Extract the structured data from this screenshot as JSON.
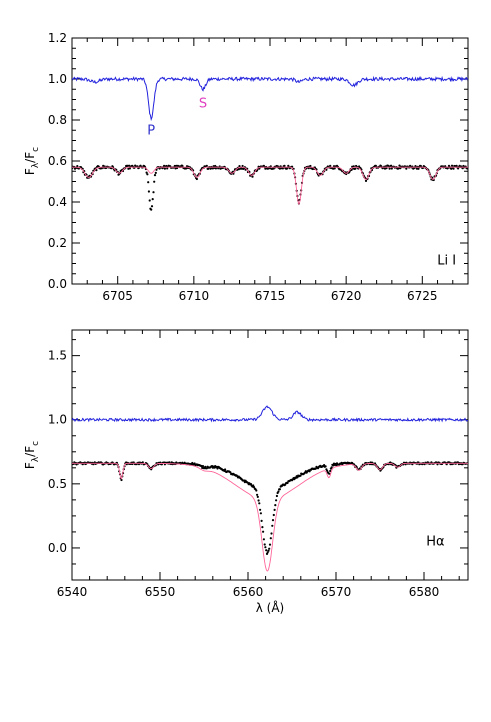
{
  "chart_data": [
    {
      "type": "line",
      "panel": "top",
      "xlim": [
        6702,
        6728
      ],
      "ylim": [
        0.0,
        1.2
      ],
      "xticks": [
        6705,
        6710,
        6715,
        6720,
        6725
      ],
      "yticks": [
        0.0,
        0.2,
        0.4,
        0.6,
        0.8,
        1.0,
        1.2
      ],
      "xtick_labels": [
        "6705",
        "6710",
        "6715",
        "6720",
        "6725"
      ],
      "ytick_labels": [
        "0.0",
        "0.2",
        "0.4",
        "0.6",
        "0.8",
        "1.0",
        "1.2"
      ],
      "ylabel_main": "F",
      "ylabel_sub1": "λ",
      "ylabel_sep": "/F",
      "ylabel_sub2": "c",
      "xlabel": "",
      "annotations": [
        {
          "text": "P",
          "x": 6707.2,
          "y": 0.73,
          "color": "#3333cc"
        },
        {
          "text": "S",
          "x": 6710.6,
          "y": 0.86,
          "color": "#e040c0"
        },
        {
          "text": "Li I",
          "x": 6726.6,
          "y": 0.095,
          "color": "#000000"
        }
      ],
      "series": [
        {
          "color": "#2222dd",
          "role": "residual",
          "continuum": 1.0,
          "noise": 0.008,
          "lines": [
            [
              6707.2,
              0.19,
              0.18
            ],
            [
              6710.6,
              0.05,
              0.18
            ],
            [
              6703.5,
              0.015,
              0.3
            ],
            [
              6720.5,
              0.03,
              0.25
            ],
            [
              6716.9,
              0.015,
              0.2
            ]
          ]
        },
        {
          "color": "#000000",
          "role": "observed",
          "continuum": 0.57,
          "noise": 0.008,
          "lines": [
            [
              6707.2,
              0.21,
              0.14
            ],
            [
              6710.2,
              0.05,
              0.2
            ],
            [
              6716.9,
              0.17,
              0.16
            ],
            [
              6703.1,
              0.05,
              0.25
            ],
            [
              6713.8,
              0.04,
              0.2
            ],
            [
              6718.3,
              0.04,
              0.2
            ],
            [
              6720.0,
              0.03,
              0.2
            ],
            [
              6721.3,
              0.06,
              0.2
            ],
            [
              6725.7,
              0.06,
              0.2
            ],
            [
              6705.1,
              0.03,
              0.2
            ],
            [
              6712.5,
              0.03,
              0.2
            ]
          ]
        },
        {
          "color": "#ff6699",
          "role": "synthetic",
          "continuum": 0.57,
          "noise": 0.0,
          "lines": [
            [
              6707.2,
              0.03,
              0.18
            ],
            [
              6710.2,
              0.05,
              0.2
            ],
            [
              6716.9,
              0.18,
              0.16
            ],
            [
              6703.1,
              0.05,
              0.25
            ],
            [
              6713.8,
              0.04,
              0.2
            ],
            [
              6718.3,
              0.04,
              0.2
            ],
            [
              6720.0,
              0.03,
              0.2
            ],
            [
              6721.3,
              0.06,
              0.2
            ],
            [
              6725.7,
              0.06,
              0.2
            ],
            [
              6705.1,
              0.03,
              0.2
            ],
            [
              6712.5,
              0.03,
              0.2
            ]
          ]
        }
      ]
    },
    {
      "type": "line",
      "panel": "bottom",
      "xlim": [
        6540,
        6585
      ],
      "ylim": [
        -0.25,
        1.7
      ],
      "xticks": [
        6540,
        6550,
        6560,
        6570,
        6580
      ],
      "yticks": [
        0.0,
        0.5,
        1.0,
        1.5
      ],
      "xtick_labels": [
        "6540",
        "6550",
        "6560",
        "6570",
        "6580"
      ],
      "ytick_labels": [
        "0.0",
        "0.5",
        "1.0",
        "1.5"
      ],
      "ylabel_main": "F",
      "ylabel_sub1": "λ",
      "ylabel_sep": "/F",
      "ylabel_sub2": "c",
      "xlabel": "λ (Å)",
      "annotations": [
        {
          "text": "Hα",
          "x": 6581.3,
          "y": 0.02,
          "color": "#000000"
        }
      ],
      "series": [
        {
          "color": "#2222dd",
          "role": "residual",
          "continuum": 1.0,
          "noise": 0.01,
          "lines": [
            [
              6562.2,
              -0.1,
              0.55
            ],
            [
              6565.6,
              -0.06,
              0.45
            ]
          ]
        },
        {
          "color": "#000000",
          "role": "observed",
          "continuum": 0.66,
          "noise": 0.008,
          "lines": [
            [
              6562.2,
              0.5,
              0.55
            ],
            [
              6562.2,
              0.2,
              3.0
            ],
            [
              6545.6,
              0.13,
              0.18
            ],
            [
              6549.0,
              0.04,
              0.3
            ],
            [
              6569.2,
              0.07,
              0.2
            ],
            [
              6572.6,
              0.05,
              0.3
            ],
            [
              6575.0,
              0.05,
              0.3
            ],
            [
              6577.0,
              0.03,
              0.3
            ],
            [
              6555.0,
              0.02,
              0.5
            ]
          ]
        },
        {
          "color": "#ff6699",
          "role": "synthetic",
          "continuum": 0.66,
          "noise": 0.0,
          "lines": [
            [
              6562.2,
              0.56,
              0.6
            ],
            [
              6562.2,
              0.28,
              3.6
            ],
            [
              6545.6,
              0.12,
              0.18
            ],
            [
              6549.0,
              0.04,
              0.3
            ],
            [
              6569.2,
              0.07,
              0.2
            ],
            [
              6572.6,
              0.05,
              0.3
            ],
            [
              6575.0,
              0.05,
              0.3
            ],
            [
              6577.0,
              0.03,
              0.3
            ],
            [
              6555.0,
              0.02,
              0.5
            ]
          ]
        }
      ]
    }
  ]
}
